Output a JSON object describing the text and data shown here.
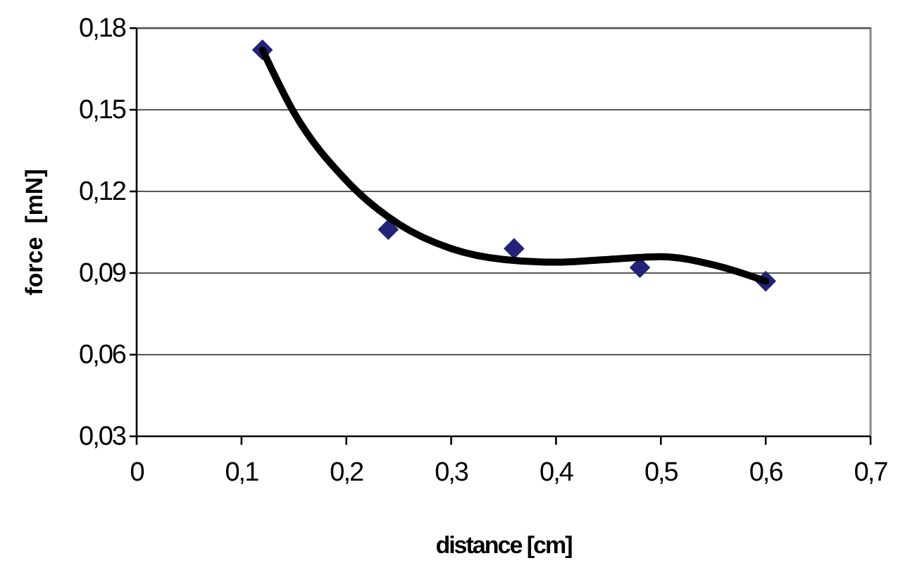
{
  "chart_data": {
    "type": "scatter",
    "xlabel": "distance [cm]",
    "ylabel": "force  [mN]",
    "xlim": [
      0,
      0.7
    ],
    "xticks": [
      {
        "value": 0,
        "label": "0"
      },
      {
        "value": 0.1,
        "label": "0,1"
      },
      {
        "value": 0.2,
        "label": "0,2"
      },
      {
        "value": 0.3,
        "label": "0,3"
      },
      {
        "value": 0.4,
        "label": "0,4"
      },
      {
        "value": 0.5,
        "label": "0,5"
      },
      {
        "value": 0.6,
        "label": "0,6"
      },
      {
        "value": 0.7,
        "label": "0,7"
      }
    ],
    "ylim": [
      0.03,
      0.18
    ],
    "yticks": [
      {
        "value": 0.03,
        "label": "0,03"
      },
      {
        "value": 0.06,
        "label": "0,06"
      },
      {
        "value": 0.09,
        "label": "0,09"
      },
      {
        "value": 0.12,
        "label": "0,12"
      },
      {
        "value": 0.15,
        "label": "0,15"
      },
      {
        "value": 0.18,
        "label": "0,18"
      }
    ],
    "grid": "y",
    "marker": "diamond",
    "series": [
      {
        "color": "#22227a",
        "x": [
          0.12,
          0.24,
          0.36,
          0.48,
          0.6
        ],
        "values": [
          0.172,
          0.106,
          0.099,
          0.092,
          0.087
        ]
      },
      {
        "type": "line",
        "color": "#000000",
        "marker": "none",
        "line_style": "solid",
        "x": [
          0.12,
          0.15,
          0.2,
          0.25,
          0.3,
          0.35,
          0.4,
          0.45,
          0.5,
          0.55,
          0.6
        ],
        "values": [
          0.172,
          0.149,
          0.124,
          0.108,
          0.099,
          0.095,
          0.094,
          0.095,
          0.096,
          0.093,
          0.087
        ]
      }
    ]
  }
}
